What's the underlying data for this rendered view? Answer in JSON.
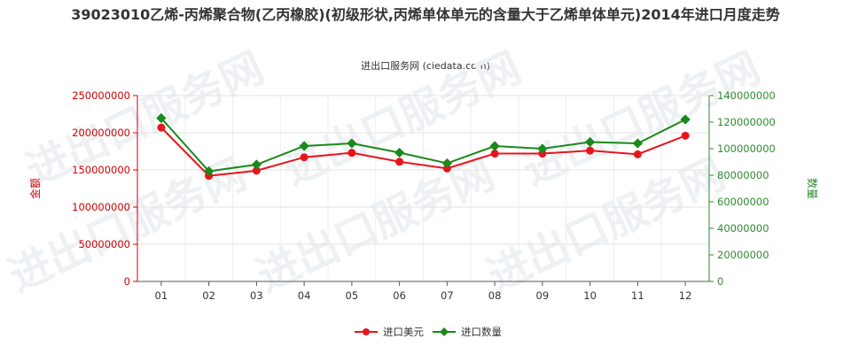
{
  "title": "39023010乙烯-丙烯聚合物(乙丙橡胶)(初级形状,丙烯单体单元的含量大于乙烯单体单元)2014年进口月度走势",
  "subtitle": "进出口服务网 (ciedata.com)",
  "watermark": "进出口服务网",
  "chart_data": {
    "type": "line",
    "title": "39023010乙烯-丙烯聚合物(乙丙橡胶)(初级形状,丙烯单体单元的含量大于乙烯单体单元)2014年进口月度走势",
    "subtitle": "进出口服务网 (ciedata.com)",
    "categories": [
      "01",
      "02",
      "03",
      "04",
      "05",
      "06",
      "07",
      "08",
      "09",
      "10",
      "11",
      "12"
    ],
    "y_left": {
      "label": "金额",
      "min": 0,
      "max": 250000000,
      "ticks": [
        0,
        50000000,
        100000000,
        150000000,
        200000000,
        250000000
      ],
      "tick_labels": [
        "0",
        "50000000",
        "100000000",
        "150000000",
        "200000000",
        "250000000"
      ],
      "color": "#d00000"
    },
    "y_right": {
      "label": "数量",
      "min": 0,
      "max": 140000000,
      "ticks": [
        0,
        20000000,
        40000000,
        60000000,
        80000000,
        100000000,
        120000000,
        140000000
      ],
      "tick_labels": [
        "0",
        "20000000",
        "40000000",
        "60000000",
        "80000000",
        "100000000",
        "120000000",
        "140000000"
      ],
      "color": "#2e8b2e"
    },
    "grid": true,
    "legend_position": "bottom-center",
    "series": [
      {
        "name": "进口美元",
        "axis": "left",
        "color": "#e8141c",
        "values": [
          207000000,
          142000000,
          149000000,
          167000000,
          173000000,
          161000000,
          152000000,
          172000000,
          172000000,
          176000000,
          171000000,
          196000000
        ]
      },
      {
        "name": "进口数量",
        "axis": "right",
        "color": "#1a8a1a",
        "values": [
          123000000,
          83000000,
          88000000,
          102000000,
          104000000,
          97000000,
          89000000,
          102000000,
          100000000,
          105000000,
          104000000,
          122000000
        ]
      }
    ]
  }
}
